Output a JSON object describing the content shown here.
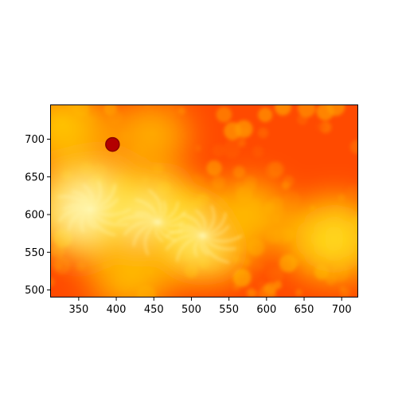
{
  "chart_data": {
    "type": "heatmap",
    "title": "",
    "xlabel": "",
    "ylabel": "",
    "xlim": [
      312,
      722
    ],
    "ylim": [
      490,
      746
    ],
    "x_ticks": [
      350,
      400,
      450,
      500,
      550,
      600,
      650,
      700
    ],
    "y_ticks": [
      500,
      550,
      600,
      650,
      700
    ],
    "x_tick_labels": [
      "350",
      "400",
      "450",
      "500",
      "550",
      "600",
      "650",
      "700"
    ],
    "y_tick_labels": [
      "500",
      "550",
      "600",
      "650",
      "700"
    ],
    "grid": false,
    "colormap": "hot",
    "colors": {
      "background": "#ff4a00",
      "mid": "#ff7a00",
      "bright": "#ffd800",
      "hot_core": "#ffffe0",
      "dark_spot": "#b30000"
    },
    "features": [
      {
        "label": "bright region",
        "x": 365,
        "y": 607,
        "level": 0.95
      },
      {
        "label": "bright region",
        "x": 455,
        "y": 590,
        "level": 0.92
      },
      {
        "label": "bright region",
        "x": 515,
        "y": 572,
        "level": 0.85
      },
      {
        "label": "bright region",
        "x": 690,
        "y": 568,
        "level": 0.75
      },
      {
        "label": "bright region",
        "x": 330,
        "y": 715,
        "level": 0.65
      },
      {
        "label": "bright region",
        "x": 445,
        "y": 705,
        "level": 0.55
      },
      {
        "label": "bright region",
        "x": 575,
        "y": 600,
        "level": 0.6
      },
      {
        "label": "bright region",
        "x": 420,
        "y": 520,
        "level": 0.6
      },
      {
        "label": "dark spot",
        "x": 395,
        "y": 693,
        "level": 0.1
      }
    ]
  }
}
